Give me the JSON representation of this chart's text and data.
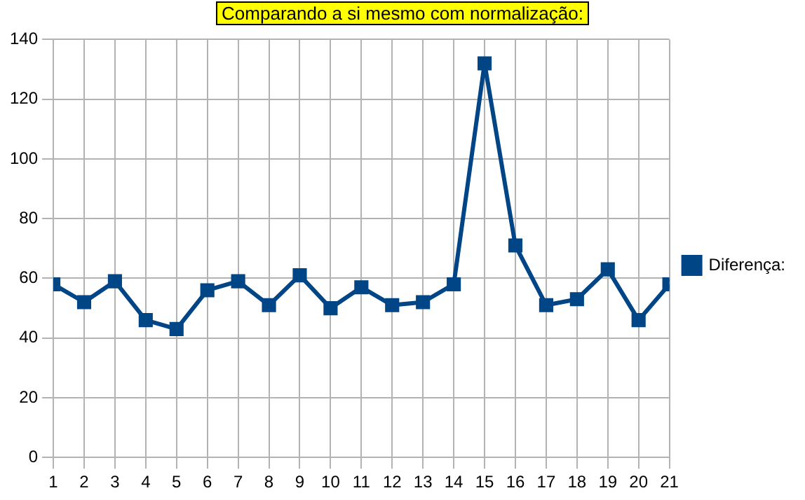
{
  "chart_data": {
    "type": "line",
    "title": "Comparando a si mesmo com normalização:",
    "x": [
      1,
      2,
      3,
      4,
      5,
      6,
      7,
      8,
      9,
      10,
      11,
      12,
      13,
      14,
      15,
      16,
      17,
      18,
      19,
      20,
      21
    ],
    "series": [
      {
        "name": "Diferença:",
        "color": "#004586",
        "values": [
          58,
          52,
          59,
          46,
          43,
          56,
          59,
          51,
          61,
          50,
          57,
          51,
          52,
          58,
          132,
          71,
          51,
          53,
          63,
          46,
          58
        ]
      }
    ],
    "xlim": [
      1,
      21
    ],
    "xticks": [
      1,
      2,
      3,
      4,
      5,
      6,
      7,
      8,
      9,
      10,
      11,
      12,
      13,
      14,
      15,
      16,
      17,
      18,
      19,
      20,
      21
    ],
    "ylim": [
      0,
      140
    ],
    "yticks": [
      0,
      20,
      40,
      60,
      80,
      100,
      120,
      140
    ],
    "grid": true,
    "legend": "right",
    "marker": "square",
    "line_style": "solid"
  }
}
